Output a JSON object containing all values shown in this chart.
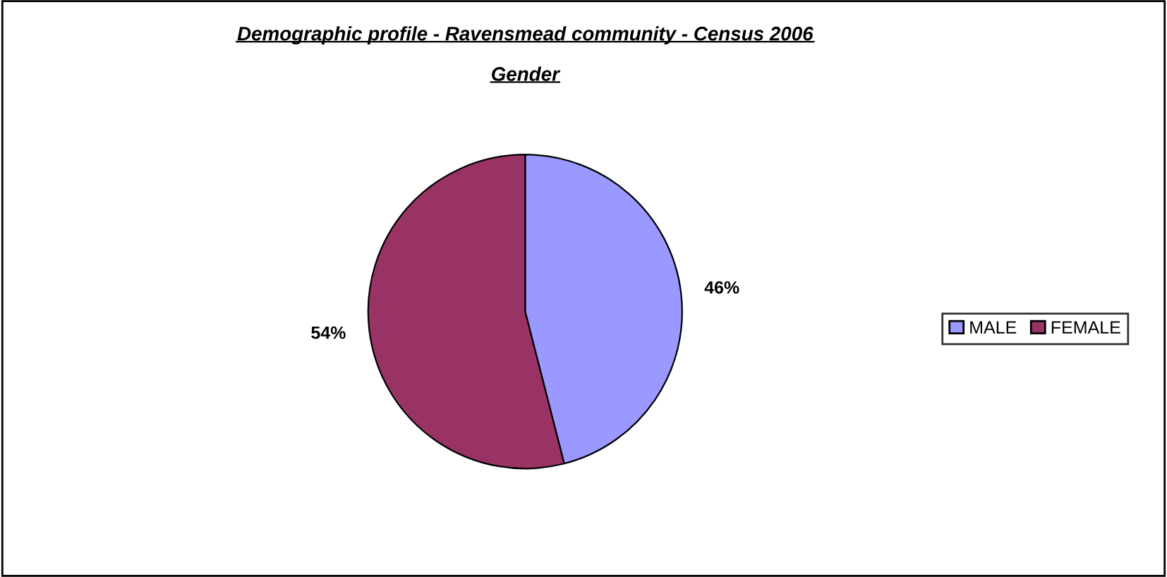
{
  "chart_data": {
    "type": "pie",
    "title": "Demographic profile - Ravensmead community - Census 2006",
    "subtitle": "Gender",
    "categories": [
      "MALE",
      "FEMALE"
    ],
    "values": [
      46,
      54
    ],
    "colors": [
      "#9999ff",
      "#993366"
    ],
    "value_labels": [
      "46%",
      "54%"
    ],
    "legend": "right"
  }
}
